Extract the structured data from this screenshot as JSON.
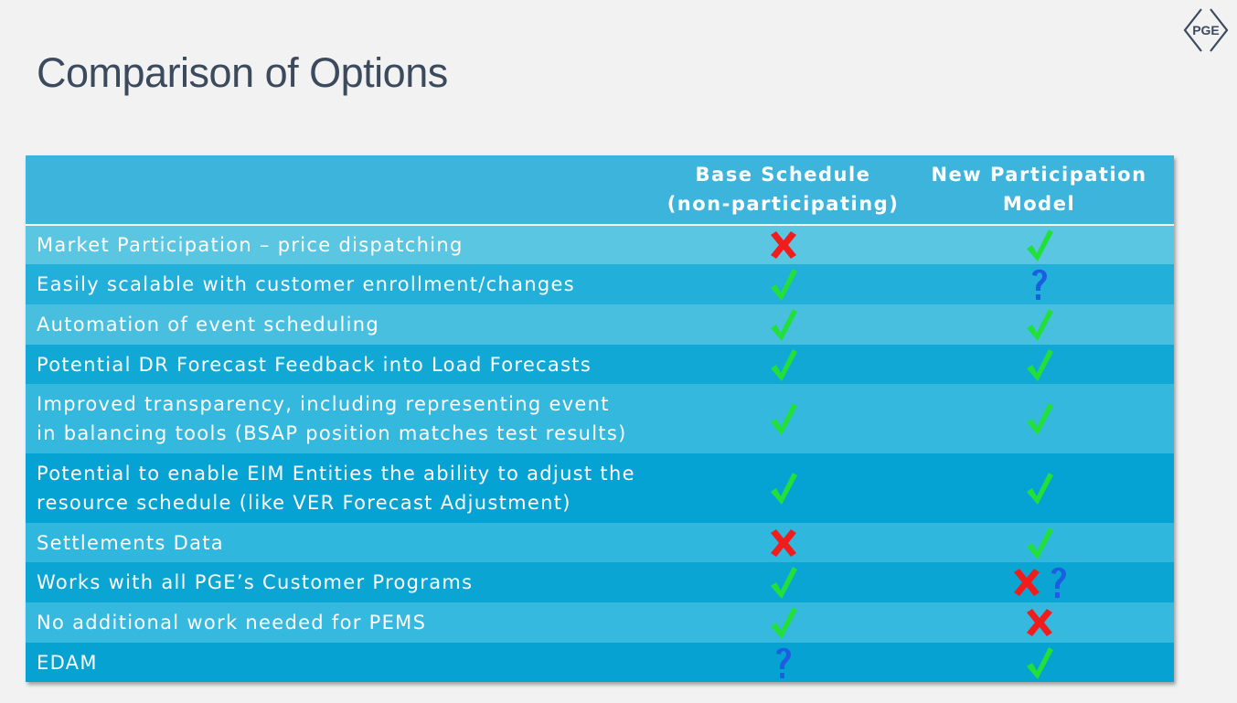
{
  "slide": {
    "title": "Comparison of Options",
    "logo_text": "PGE"
  },
  "table": {
    "headers": [
      "",
      "Base Schedule\n(non-participating)",
      "New Participation\nModel"
    ],
    "header_lines": {
      "col2": [
        "Base Schedule",
        "(non-participating)"
      ],
      "col3": [
        "New Participation",
        "Model"
      ]
    },
    "rows": [
      {
        "label_lines": [
          "Market Participation – price dispatching"
        ],
        "base": "cross",
        "new": "check"
      },
      {
        "label_lines": [
          "Easily scalable with customer enrollment/changes"
        ],
        "base": "check",
        "new": "question"
      },
      {
        "label_lines": [
          "Automation of event scheduling"
        ],
        "base": "check",
        "new": "check"
      },
      {
        "label_lines": [
          "Potential DR Forecast Feedback into Load Forecasts"
        ],
        "base": "check",
        "new": "check"
      },
      {
        "label_lines": [
          "Improved transparency, including representing event",
          "in balancing tools (BSAP position matches test results)"
        ],
        "base": "check",
        "new": "check"
      },
      {
        "label_lines": [
          "Potential to enable EIM Entities the ability to adjust the",
          "resource schedule (like VER Forecast Adjustment)"
        ],
        "base": "check",
        "new": "check"
      },
      {
        "label_lines": [
          "Settlements Data"
        ],
        "base": "cross",
        "new": "check"
      },
      {
        "label_lines": [
          "Works with all PGE’s Customer Programs"
        ],
        "base": "check",
        "new": "cross-question"
      },
      {
        "label_lines": [
          "No additional work needed for PEMS"
        ],
        "base": "check",
        "new": "cross"
      },
      {
        "label_lines": [
          "EDAM"
        ],
        "base": "question",
        "new": "check"
      }
    ]
  },
  "colors": {
    "check": "#22e03a",
    "cross": "#f21c1c",
    "question": "#1b5fe0",
    "header_bg": "#3cb4dc",
    "title_text": "#3b4a5c"
  }
}
